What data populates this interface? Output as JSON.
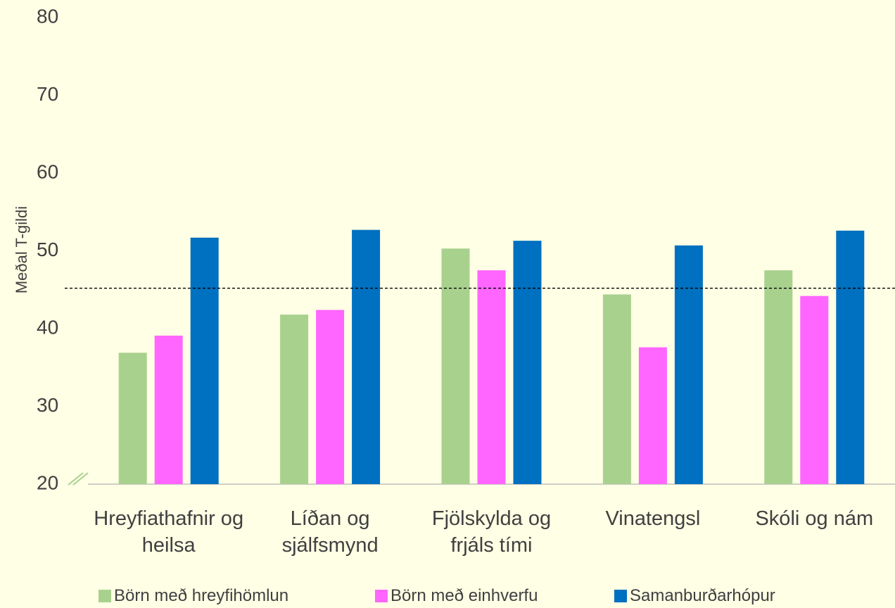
{
  "chart_data": {
    "type": "bar",
    "y_label": "Meðal T-gildi",
    "categories": [
      "Hreyfiathafnir og heilsa",
      "Líðan og sjálfsmynd",
      "Fjölskylda og frjáls tími",
      "Vinatengsl",
      "Skóli og nám"
    ],
    "series": [
      {
        "name": "Börn með hreyfihömlun",
        "color": "#a9d18e",
        "values": [
          36.9,
          41.8,
          50.3,
          44.4,
          47.5
        ]
      },
      {
        "name": "Börn með einhverfu",
        "color": "#ff66ff",
        "values": [
          39.1,
          42.4,
          47.5,
          37.6,
          44.2
        ]
      },
      {
        "name": "Samanburðarhópur",
        "color": "#0070c0",
        "values": [
          51.7,
          52.7,
          51.3,
          50.7,
          52.6
        ]
      }
    ],
    "reference_line": 45.2,
    "ylim": [
      20,
      80
    ],
    "yticks": [
      20,
      30,
      40,
      50,
      60,
      70,
      80
    ],
    "grid": false,
    "legend": "bottom"
  }
}
